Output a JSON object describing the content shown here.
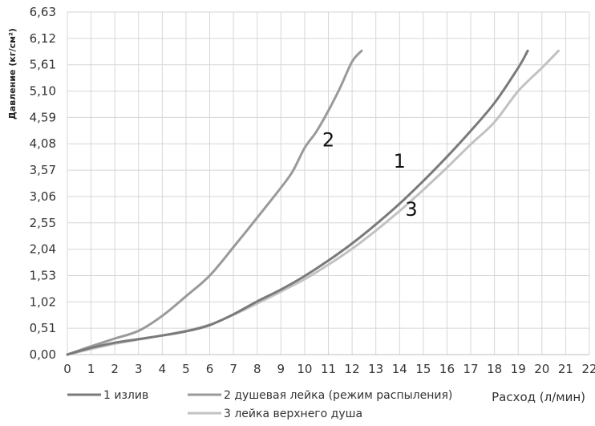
{
  "chart_data": {
    "type": "line",
    "xlabel": "Расход (л/мин)",
    "ylabel": "Давление (кг/см²)",
    "xlim": [
      0,
      22
    ],
    "ylim": [
      0,
      6.63
    ],
    "x_ticks": [
      "0",
      "1",
      "2",
      "3",
      "4",
      "5",
      "6",
      "7",
      "8",
      "9",
      "10",
      "11",
      "12",
      "13",
      "14",
      "15",
      "16",
      "17",
      "18",
      "19",
      "20",
      "21",
      "22"
    ],
    "y_ticks": [
      "0,00",
      "0,51",
      "1,02",
      "1,53",
      "2,04",
      "2,55",
      "3,06",
      "3,57",
      "4,08",
      "4,59",
      "5,10",
      "5,61",
      "6,12",
      "6,63"
    ],
    "grid": true,
    "legend_position": "bottom",
    "series": [
      {
        "name": "1 излив",
        "color": "#7a7a7a",
        "points": [
          [
            0,
            0
          ],
          [
            1,
            0.13
          ],
          [
            2,
            0.23
          ],
          [
            3,
            0.3
          ],
          [
            4,
            0.37
          ],
          [
            5,
            0.45
          ],
          [
            6,
            0.57
          ],
          [
            7,
            0.78
          ],
          [
            8,
            1.03
          ],
          [
            9,
            1.26
          ],
          [
            10,
            1.52
          ],
          [
            11,
            1.82
          ],
          [
            12,
            2.15
          ],
          [
            13,
            2.52
          ],
          [
            14,
            2.92
          ],
          [
            15,
            3.36
          ],
          [
            16,
            3.83
          ],
          [
            17,
            4.33
          ],
          [
            18,
            4.87
          ],
          [
            19,
            5.55
          ],
          [
            19.4,
            5.88
          ]
        ]
      },
      {
        "name": "2 душевая лейка (режим распыления)",
        "color": "#9a9a9a",
        "points": [
          [
            0,
            0
          ],
          [
            1,
            0.16
          ],
          [
            2,
            0.31
          ],
          [
            3,
            0.46
          ],
          [
            4,
            0.75
          ],
          [
            5,
            1.13
          ],
          [
            6,
            1.53
          ],
          [
            7,
            2.08
          ],
          [
            8,
            2.65
          ],
          [
            9,
            3.23
          ],
          [
            9.5,
            3.55
          ],
          [
            10,
            4.0
          ],
          [
            10.5,
            4.32
          ],
          [
            11,
            4.72
          ],
          [
            11.5,
            5.17
          ],
          [
            12,
            5.67
          ],
          [
            12.4,
            5.88
          ]
        ]
      },
      {
        "name": "3 лейка верхнего душа",
        "color": "#c2c2c2",
        "points": [
          [
            0,
            0
          ],
          [
            1,
            0.11
          ],
          [
            2,
            0.21
          ],
          [
            3,
            0.29
          ],
          [
            4,
            0.37
          ],
          [
            5,
            0.46
          ],
          [
            6,
            0.58
          ],
          [
            7,
            0.77
          ],
          [
            8,
            0.99
          ],
          [
            9,
            1.22
          ],
          [
            10,
            1.46
          ],
          [
            11,
            1.74
          ],
          [
            12,
            2.05
          ],
          [
            13,
            2.4
          ],
          [
            14,
            2.78
          ],
          [
            15,
            3.19
          ],
          [
            16,
            3.62
          ],
          [
            17,
            4.07
          ],
          [
            18,
            4.5
          ],
          [
            19,
            5.1
          ],
          [
            20,
            5.55
          ],
          [
            20.7,
            5.88
          ]
        ]
      }
    ],
    "annotations": [
      {
        "text": "2",
        "x": 11,
        "y": 4.03
      },
      {
        "text": "1",
        "x": 14,
        "y": 3.62
      },
      {
        "text": "3",
        "x": 14.5,
        "y": 2.69
      }
    ]
  }
}
